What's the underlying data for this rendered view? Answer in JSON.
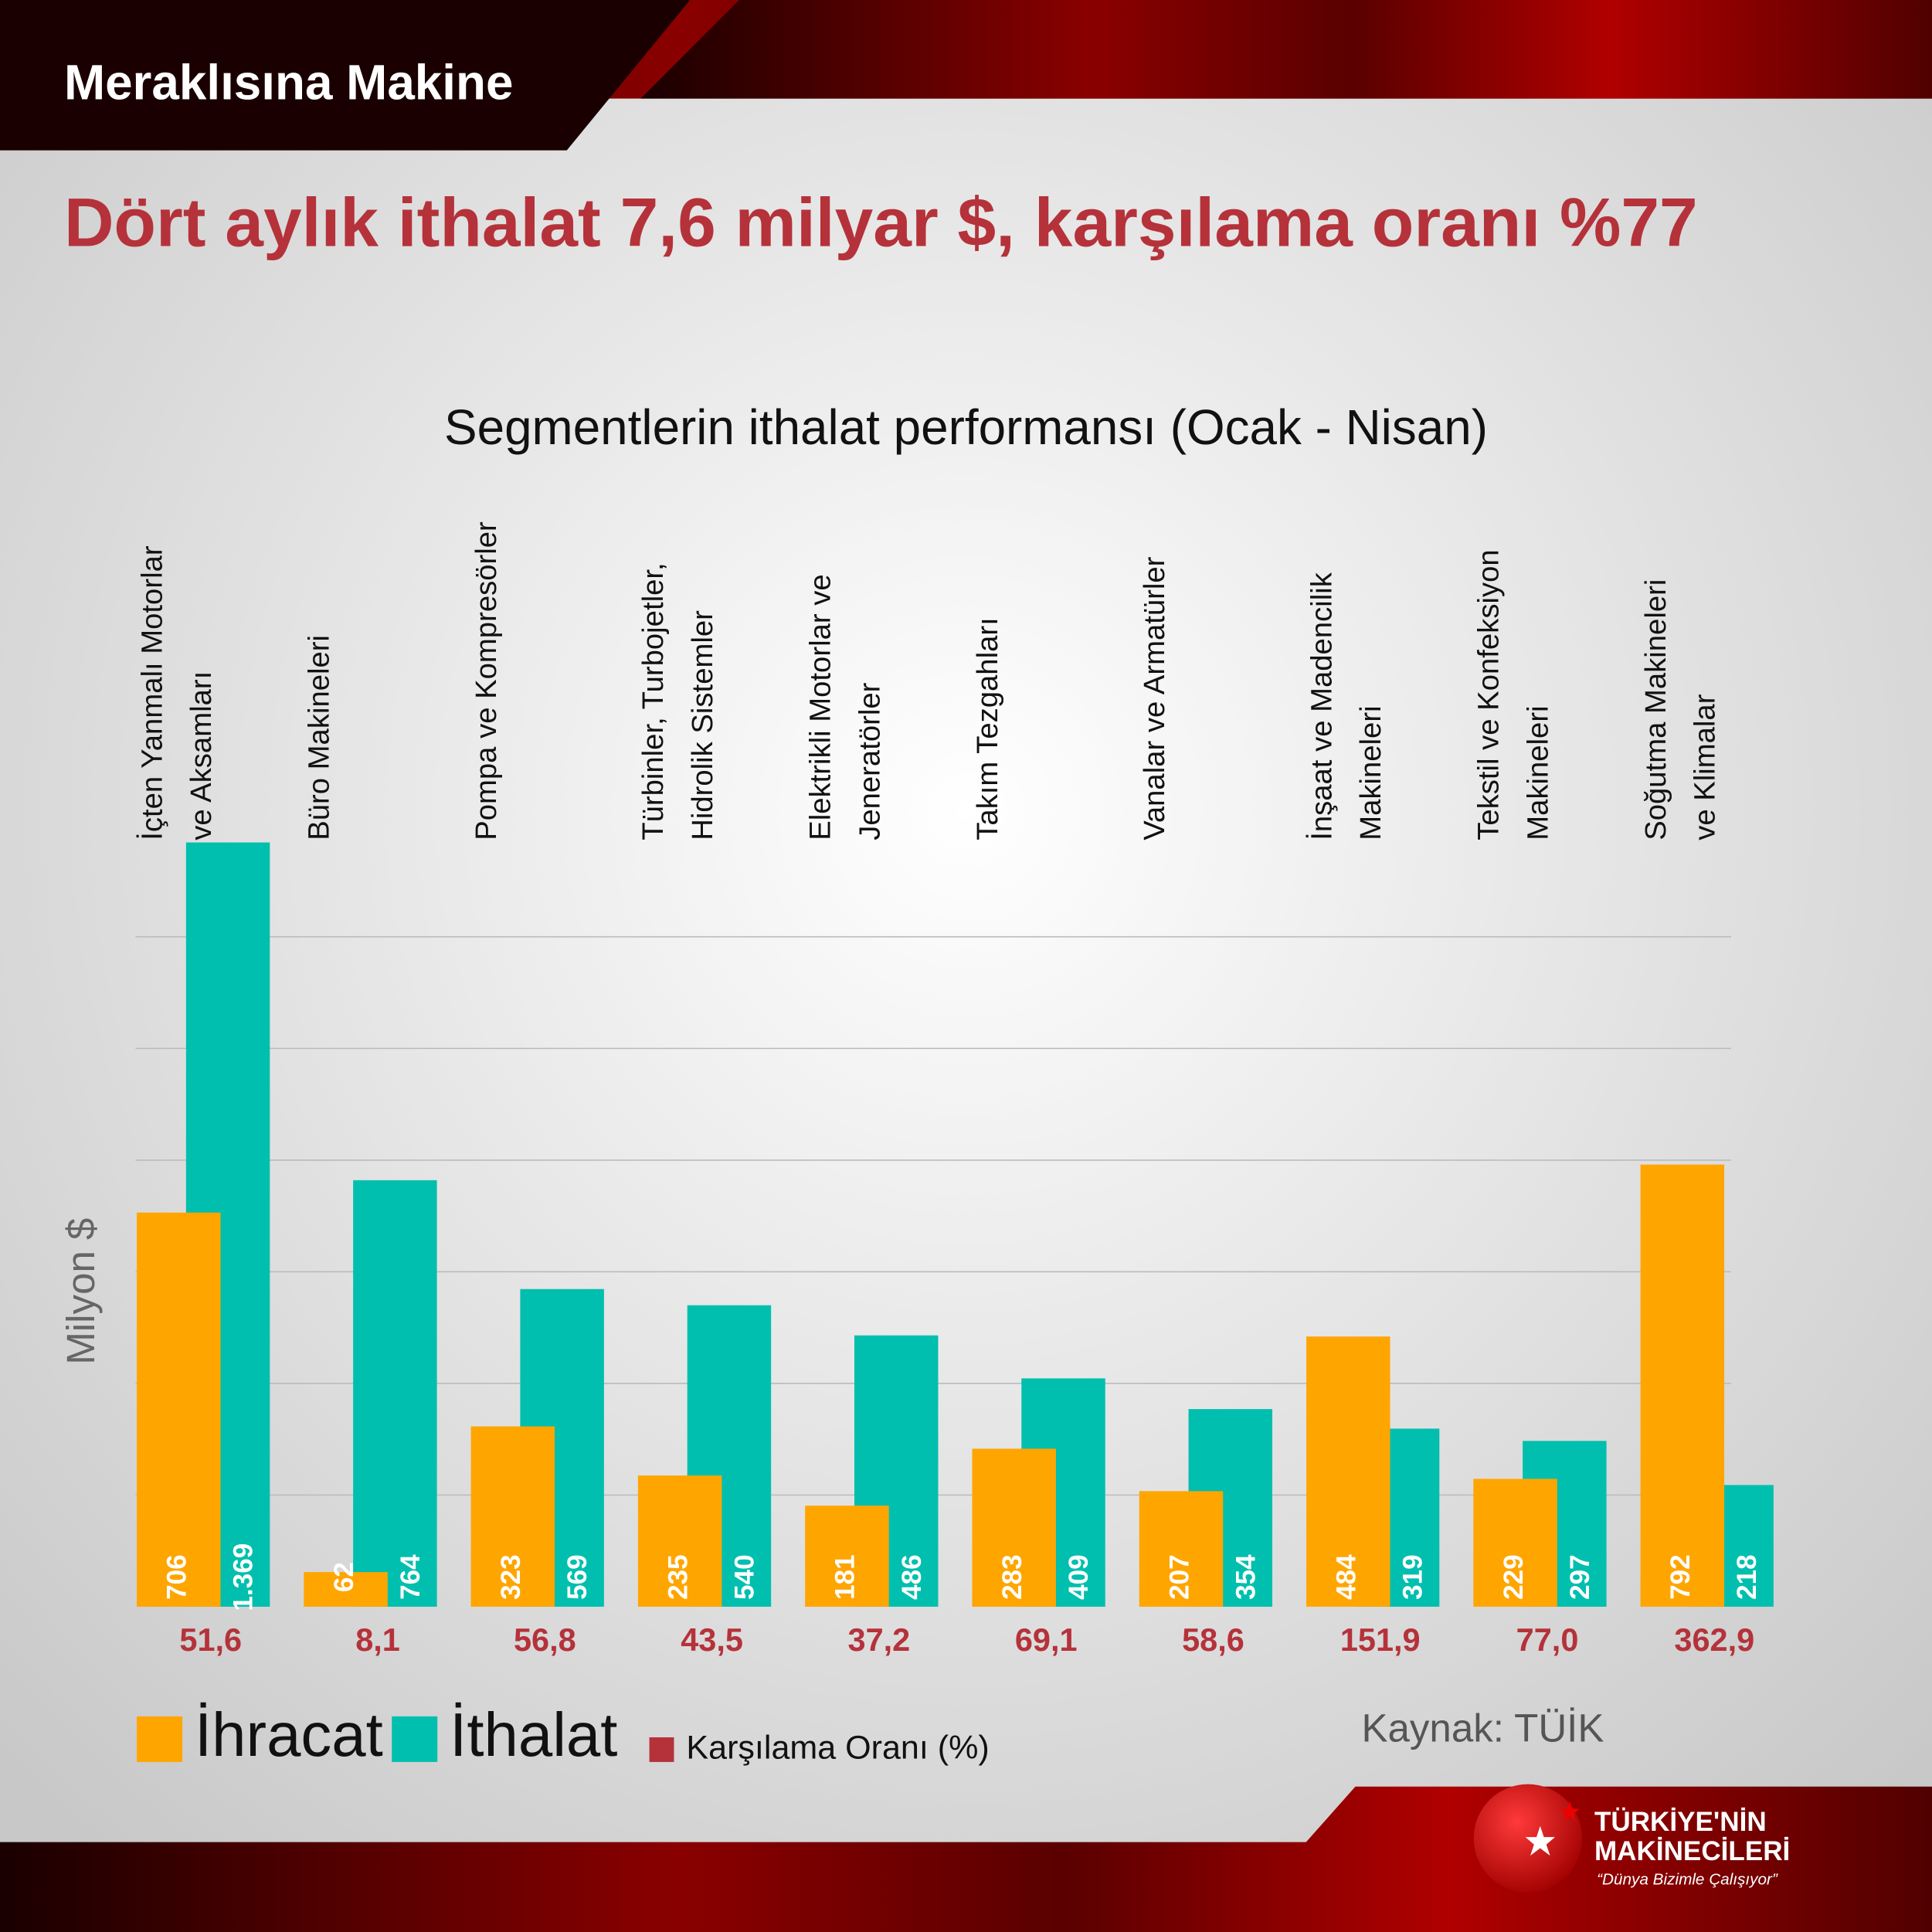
{
  "header": "Meraklısına Makine",
  "chart_data": {
    "type": "bar",
    "title": "Dört aylık ithalat 7,6 milyar $, karşılama oranı %77",
    "subtitle": "Segmentlerin ithalat performansı (Ocak - Nisan)",
    "y_label": "Milyon $",
    "categories": [
      "İçten Yanmalı Motorlar\nve Aksamları",
      "Büro Makineleri",
      "Pompa ve Kompresörler",
      "Türbinler, Turbojetler,\nHidrolik Sistemler",
      "Elektrikli Motorlar ve\nJeneratörler",
      "Takım Tezgahları",
      "Vanalar ve Armatürler",
      "İnşaat ve Madencilik\nMakineleri",
      "Tekstil ve Konfeksiyon\nMakineleri",
      "Soğutma Makineleri\nve Klimalar"
    ],
    "series": [
      {
        "name": "İhracat",
        "color": "#ffa500",
        "values": [
          706,
          62,
          323,
          235,
          181,
          283,
          207,
          484,
          229,
          792
        ]
      },
      {
        "name": "İthalat",
        "color": "#00bfae",
        "values": [
          1369,
          764,
          569,
          540,
          486,
          409,
          354,
          319,
          297,
          218
        ],
        "value_labels": [
          "1.369",
          "764",
          "569",
          "540",
          "486",
          "409",
          "354",
          "319",
          "297",
          "218"
        ]
      }
    ],
    "coverage": {
      "name": "Karşılama Oranı (%)",
      "color": "#b5323a",
      "values": [
        51.6,
        8.1,
        56.8,
        43.5,
        37.2,
        69.1,
        58.6,
        151.9,
        77.0,
        362.9
      ],
      "value_labels": [
        "51,6",
        "8,1",
        "56,8",
        "43,5",
        "37,2",
        "69,1",
        "58,6",
        "151,9",
        "77,0",
        "362,9"
      ]
    },
    "ylim": [
      0,
      1300
    ],
    "yticks": [
      200,
      400,
      600,
      800,
      1000,
      1200
    ],
    "grid": true,
    "source": "Kaynak: TÜİK"
  },
  "logo": {
    "line1": "TÜRKİYE'NİN",
    "line2": "MAKİNECİLERİ",
    "slogan": "“Dünya Bizimle Çalışıyor”"
  }
}
